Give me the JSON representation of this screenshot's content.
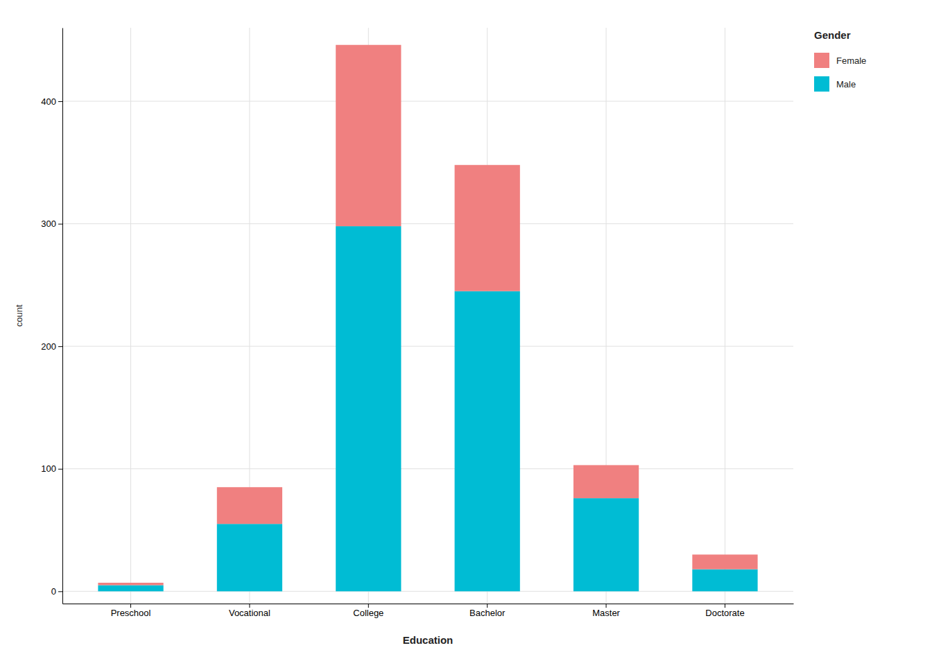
{
  "chart_data": {
    "type": "bar",
    "stacked": true,
    "categories": [
      "Preschool",
      "Vocational",
      "College",
      "Bachelor",
      "Master",
      "Doctorate"
    ],
    "series": [
      {
        "name": "Male",
        "color": "#00BCD4",
        "values": [
          5,
          55,
          298,
          245,
          76,
          18
        ]
      },
      {
        "name": "Female",
        "color": "#F08080",
        "values": [
          2,
          30,
          148,
          103,
          27,
          12
        ]
      }
    ],
    "xlabel": "Education",
    "ylabel": "count",
    "ylim": [
      -10,
      460
    ],
    "yticks": [
      0,
      100,
      200,
      300,
      400
    ],
    "grid": true,
    "legend": "right",
    "legend_title": "Gender"
  }
}
